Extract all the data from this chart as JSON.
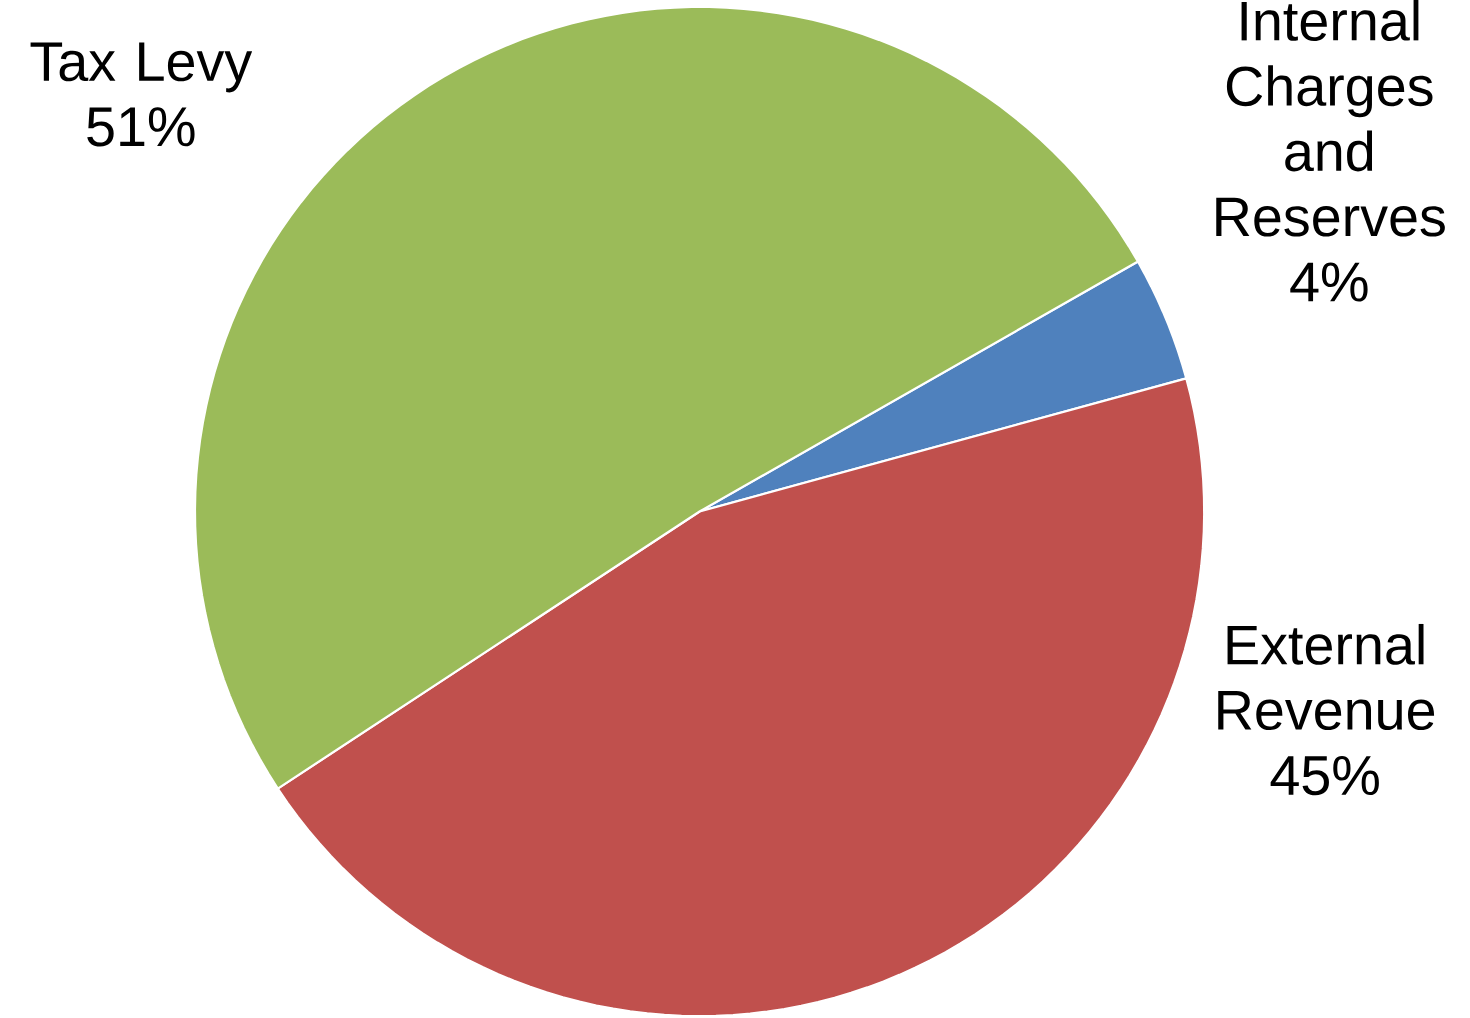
{
  "chart_data": {
    "type": "pie",
    "categories": [
      "Internal Charges and Reserves",
      "External Revenue",
      "Tax Levy"
    ],
    "values": [
      4,
      45,
      51
    ],
    "value_labels": [
      "4%",
      "45%",
      "51%"
    ],
    "colors": [
      "#4f81bd",
      "#c0504d",
      "#9bbb59"
    ]
  }
}
